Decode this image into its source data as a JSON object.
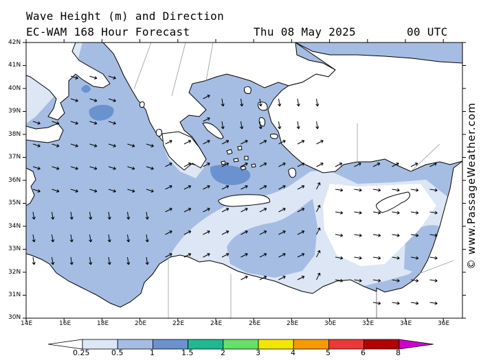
{
  "header": {
    "title": "Wave Height (m) and Direction",
    "model": "EC-WAM 168 Hour Forecast",
    "date": "Thu 08 May 2025",
    "time": "00 UTC"
  },
  "axes": {
    "lat_labels": [
      "42N",
      "41N",
      "40N",
      "39N",
      "38N",
      "37N",
      "36N",
      "35N",
      "34N",
      "33N",
      "32N",
      "31N",
      "30N"
    ],
    "lon_labels": [
      "14E",
      "16E",
      "18E",
      "20E",
      "22E",
      "24E",
      "26E",
      "28E",
      "30E",
      "32E",
      "34E",
      "36E"
    ]
  },
  "legend": {
    "labels": [
      "0.25",
      "0.5",
      "1",
      "1.5",
      "2",
      "3",
      "4",
      "5",
      "6",
      "8"
    ],
    "colors": [
      "#ffffff",
      "#dce6f5",
      "#a5bde3",
      "#6a92cf",
      "#20b890",
      "#66e066",
      "#f2e600",
      "#f79a00",
      "#eb3838",
      "#b40000",
      "#d000d0"
    ]
  },
  "map_colors": {
    "sea_low": "#dce6f5",
    "sea_mid": "#a5bde3",
    "sea_high": "#6a92cf",
    "land": "#ffffff",
    "coast": "#000000",
    "border": "#999999"
  },
  "wave_direction_icons": "arrow-icons",
  "credit": "© www.PassageWeather.com"
}
